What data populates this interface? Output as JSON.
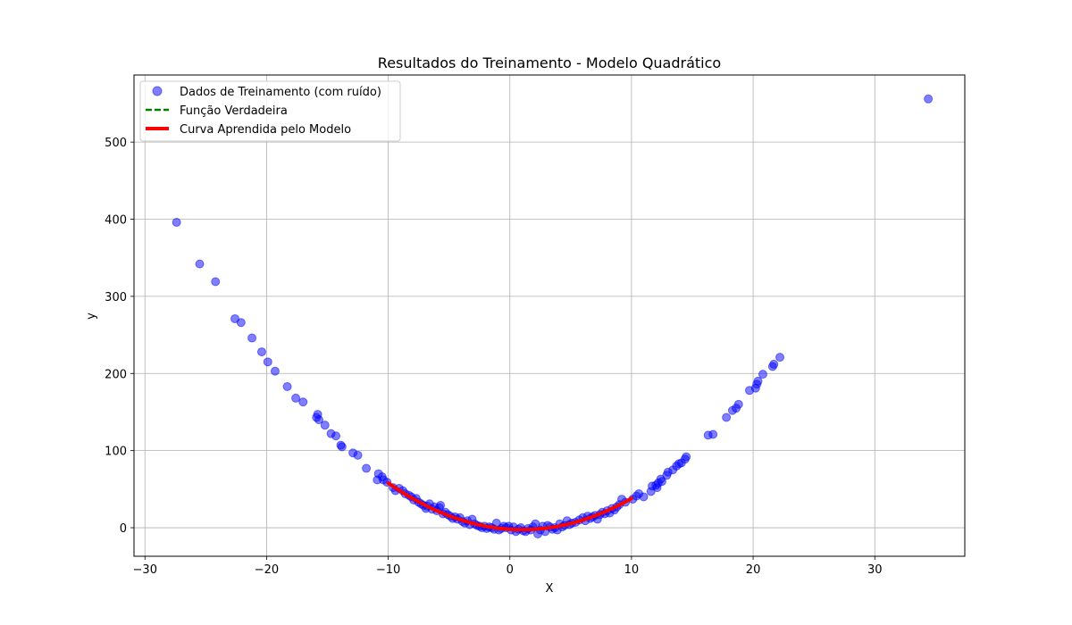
{
  "chart_data": {
    "type": "scatter",
    "title": "Resultados do Treinamento - Modelo Quadrático",
    "xlabel": "X",
    "ylabel": "y",
    "xlim": [
      -30.9,
      37.4
    ],
    "ylim": [
      -37,
      587
    ],
    "xticks": [
      -30,
      -20,
      -10,
      0,
      10,
      20,
      30
    ],
    "yticks": [
      0,
      100,
      200,
      300,
      400,
      500
    ],
    "grid": true,
    "legend_position": "upper-left",
    "series": [
      {
        "name": "Dados de Treinamento (com ruído)",
        "kind": "scatter",
        "color": "#0000ff",
        "alpha": 0.5,
        "points": [
          [
            -27.4,
            396
          ],
          [
            -25.5,
            342
          ],
          [
            -24.2,
            319
          ],
          [
            -22.6,
            271
          ],
          [
            -22.1,
            266
          ],
          [
            -21.2,
            246
          ],
          [
            -20.4,
            228
          ],
          [
            -19.9,
            215
          ],
          [
            -19.3,
            203
          ],
          [
            -18.3,
            183
          ],
          [
            -17.6,
            168
          ],
          [
            -17.0,
            163
          ],
          [
            -15.9,
            143
          ],
          [
            -15.8,
            147
          ],
          [
            -15.7,
            140
          ],
          [
            -15.2,
            133
          ],
          [
            -14.7,
            122
          ],
          [
            -14.3,
            119
          ],
          [
            -13.9,
            107
          ],
          [
            -13.8,
            105
          ],
          [
            -12.9,
            97
          ],
          [
            -12.5,
            94
          ],
          [
            -11.8,
            77
          ],
          [
            -10.9,
            62
          ],
          [
            -10.8,
            70
          ],
          [
            -10.5,
            66
          ],
          [
            -10.4,
            62
          ],
          [
            -10.1,
            59
          ],
          [
            -9.6,
            52
          ],
          [
            -9.4,
            48
          ],
          [
            -9.1,
            51
          ],
          [
            -8.8,
            48
          ],
          [
            -8.6,
            44
          ],
          [
            -8.3,
            42
          ],
          [
            -8.1,
            40
          ],
          [
            -7.9,
            36
          ],
          [
            -7.7,
            38
          ],
          [
            -7.5,
            33
          ],
          [
            -7.3,
            31
          ],
          [
            -7.1,
            29
          ],
          [
            -6.9,
            25
          ],
          [
            -6.8,
            28
          ],
          [
            -6.6,
            31
          ],
          [
            -6.4,
            24
          ],
          [
            -6.2,
            27
          ],
          [
            -6.0,
            22
          ],
          [
            -5.8,
            26
          ],
          [
            -5.7,
            29
          ],
          [
            -5.5,
            18
          ],
          [
            -5.3,
            20
          ],
          [
            -5.1,
            17
          ],
          [
            -4.9,
            15
          ],
          [
            -4.7,
            12
          ],
          [
            -4.5,
            14
          ],
          [
            -4.3,
            11
          ],
          [
            -4.1,
            13
          ],
          [
            -3.9,
            8
          ],
          [
            -3.7,
            6
          ],
          [
            -3.5,
            9
          ],
          [
            -3.3,
            4
          ],
          [
            -3.1,
            11
          ],
          [
            -2.9,
            5
          ],
          [
            -2.7,
            3
          ],
          [
            -2.5,
            2
          ],
          [
            -2.3,
            0
          ],
          [
            -2.1,
            2
          ],
          [
            -1.9,
            -1
          ],
          [
            -1.7,
            1
          ],
          [
            -1.5,
            0
          ],
          [
            -1.3,
            -2
          ],
          [
            -1.1,
            6
          ],
          [
            -0.9,
            -3
          ],
          [
            -0.7,
            -1
          ],
          [
            -0.5,
            2
          ],
          [
            -0.3,
            0
          ],
          [
            -0.1,
            2
          ],
          [
            0.1,
            -3
          ],
          [
            0.3,
            1
          ],
          [
            0.5,
            -5
          ],
          [
            0.7,
            -2
          ],
          [
            0.9,
            0
          ],
          [
            1.1,
            -4
          ],
          [
            1.3,
            -5
          ],
          [
            1.5,
            -1
          ],
          [
            1.7,
            -3
          ],
          [
            1.9,
            1
          ],
          [
            2.1,
            5
          ],
          [
            2.3,
            -8
          ],
          [
            2.5,
            -3
          ],
          [
            2.7,
            2
          ],
          [
            2.9,
            -5
          ],
          [
            3.1,
            3
          ],
          [
            3.3,
            1
          ],
          [
            3.5,
            -2
          ],
          [
            3.7,
            0
          ],
          [
            3.9,
            -3
          ],
          [
            4.1,
            5
          ],
          [
            4.3,
            1
          ],
          [
            4.5,
            3
          ],
          [
            4.7,
            9
          ],
          [
            4.9,
            4
          ],
          [
            5.1,
            6
          ],
          [
            5.4,
            7
          ],
          [
            5.7,
            10
          ],
          [
            6.0,
            13
          ],
          [
            6.2,
            9
          ],
          [
            6.4,
            15
          ],
          [
            6.6,
            12
          ],
          [
            6.8,
            14
          ],
          [
            7.0,
            16
          ],
          [
            7.2,
            11
          ],
          [
            7.4,
            17
          ],
          [
            7.6,
            20
          ],
          [
            7.8,
            18
          ],
          [
            8.0,
            22
          ],
          [
            8.2,
            19
          ],
          [
            8.4,
            25
          ],
          [
            8.6,
            23
          ],
          [
            8.8,
            27
          ],
          [
            9.0,
            30
          ],
          [
            9.2,
            37
          ],
          [
            9.5,
            33
          ],
          [
            10.1,
            37
          ],
          [
            10.4,
            41
          ],
          [
            10.6,
            44
          ],
          [
            11.0,
            40
          ],
          [
            11.6,
            47
          ],
          [
            11.7,
            54
          ],
          [
            12.0,
            55
          ],
          [
            12.1,
            52
          ],
          [
            12.2,
            58
          ],
          [
            12.4,
            63
          ],
          [
            12.5,
            60
          ],
          [
            12.9,
            68
          ],
          [
            13.0,
            72
          ],
          [
            13.4,
            75
          ],
          [
            13.7,
            80
          ],
          [
            13.9,
            83
          ],
          [
            14.1,
            84
          ],
          [
            14.4,
            89
          ],
          [
            14.5,
            92
          ],
          [
            16.3,
            120
          ],
          [
            16.7,
            121
          ],
          [
            17.8,
            143
          ],
          [
            18.3,
            152
          ],
          [
            18.6,
            155
          ],
          [
            18.8,
            160
          ],
          [
            19.7,
            178
          ],
          [
            20.2,
            181
          ],
          [
            20.3,
            186
          ],
          [
            20.4,
            190
          ],
          [
            20.8,
            199
          ],
          [
            21.6,
            209
          ],
          [
            21.7,
            212
          ],
          [
            22.2,
            221
          ],
          [
            34.4,
            556
          ]
        ]
      },
      {
        "name": "Função Verdadeira",
        "kind": "line",
        "color": "#008000",
        "dashed": true,
        "x_range": [
          -10,
          10
        ],
        "coefficients": [
          0.5,
          -1.0,
          -2.0
        ]
      },
      {
        "name": "Curva Aprendida pelo Modelo",
        "kind": "line",
        "color": "#ff0000",
        "x_range": [
          -10,
          10
        ],
        "coefficients": [
          0.5,
          -1.0,
          -2.0
        ]
      }
    ]
  }
}
